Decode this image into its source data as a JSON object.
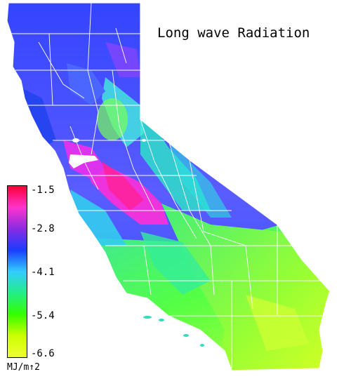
{
  "title": "Long wave Radiation",
  "legend": {
    "unit": "MJ/m↑2",
    "ticks": [
      "-1.5",
      "-2.8",
      "-4.1",
      "-5.4",
      "-6.6"
    ],
    "colors_top_to_bottom": [
      "#ff0033",
      "#ff33cc",
      "#8a2be2",
      "#1a3cff",
      "#33ccff",
      "#22ee88",
      "#33ff00",
      "#ccff00",
      "#eeff33"
    ]
  },
  "palette": {
    "boundary": "#ffffff",
    "background": "#ffffff"
  }
}
